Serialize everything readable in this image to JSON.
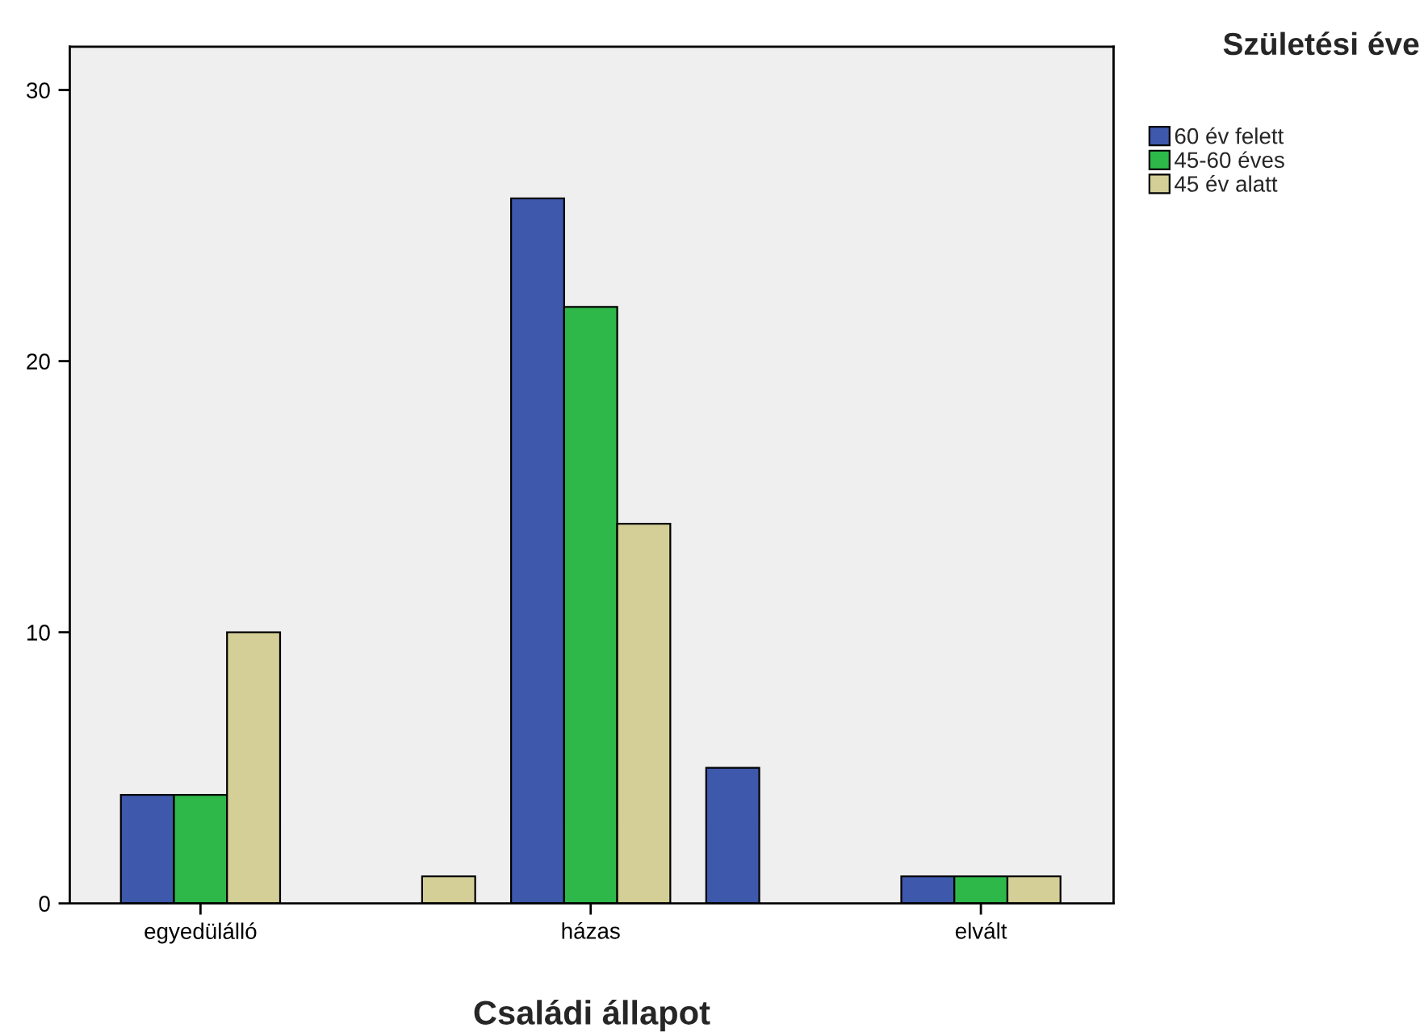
{
  "chart_data": {
    "type": "bar",
    "xlabel": "Családi állapot",
    "legend_title": "Születési éve",
    "categories": [
      "egyedülálló",
      null,
      "házas",
      null,
      "elvált"
    ],
    "series": [
      {
        "name": "60 év felett",
        "color": "#3e58ac",
        "values": [
          4,
          null,
          26,
          5,
          1
        ]
      },
      {
        "name": "45-60 éves",
        "color": "#2eb84a",
        "values": [
          4,
          null,
          22,
          null,
          1
        ]
      },
      {
        "name": "45 év alatt",
        "color": "#d4cf96",
        "values": [
          10,
          1,
          14,
          null,
          1
        ]
      }
    ],
    "ylim": [
      0,
      31.6
    ],
    "yticks": [
      0,
      10,
      20,
      30
    ],
    "grid": false,
    "legend": "top right"
  }
}
